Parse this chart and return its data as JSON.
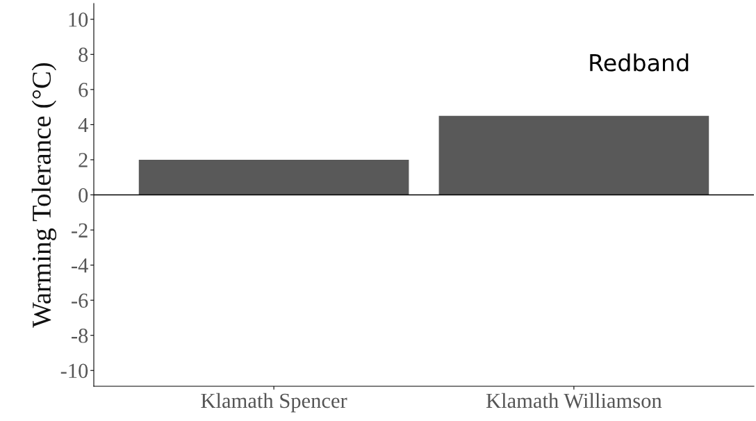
{
  "chart_data": {
    "type": "bar",
    "categories": [
      "Klamath Spencer",
      "Klamath Williamson"
    ],
    "values": [
      2.0,
      4.5
    ],
    "color": "#595959",
    "ylabel": "Warming Tolerance (°C)",
    "ylim": [
      -10.9,
      10.9
    ],
    "yticks": [
      -10,
      -8,
      -6,
      -4,
      -2,
      0,
      2,
      4,
      6,
      8,
      10
    ],
    "ref_lines": [
      {
        "axis": "y",
        "value": 0,
        "color": "#000000"
      }
    ],
    "annotations": [
      "Redband"
    ],
    "grid": false
  }
}
